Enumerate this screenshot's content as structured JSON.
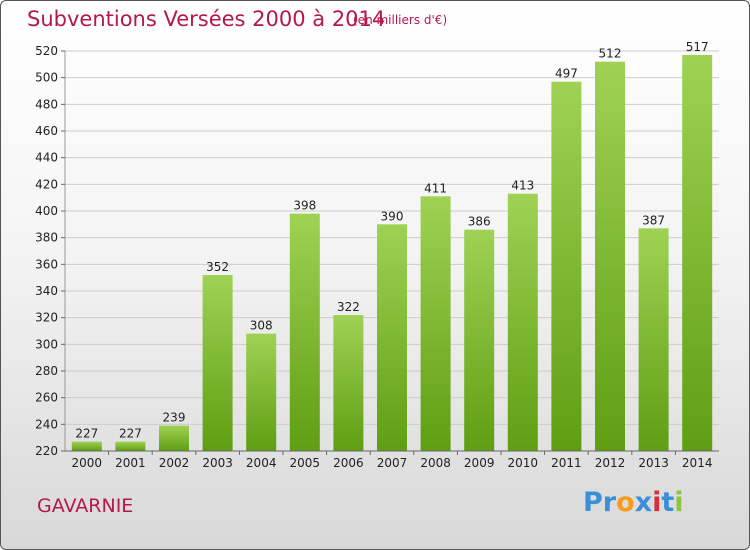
{
  "title": "Subventions Versées 2000 à 2014",
  "subtitle": "(en milliers d'€)",
  "commune": "GAVARNIE",
  "logo": {
    "text": "Proxiti",
    "letters": [
      {
        "ch": "P",
        "color": "#3a8fd8"
      },
      {
        "ch": "r",
        "color": "#3a8fd8"
      },
      {
        "ch": "o",
        "color": "#f39c1e"
      },
      {
        "ch": "x",
        "color": "#3a8fd8"
      },
      {
        "ch": "i",
        "color": "#d6303e"
      },
      {
        "ch": "t",
        "color": "#3a8fd8"
      },
      {
        "ch": "i",
        "color": "#8cc63f"
      }
    ]
  },
  "colors": {
    "title": "#b5174e",
    "bar_top": "#9fd254",
    "bar_bottom": "#5f9e12",
    "grid": "#cccccc"
  },
  "chart_data": {
    "type": "bar",
    "categories": [
      "2000",
      "2001",
      "2002",
      "2003",
      "2004",
      "2005",
      "2006",
      "2007",
      "2008",
      "2009",
      "2010",
      "2011",
      "2012",
      "2013",
      "2014"
    ],
    "values": [
      227,
      227,
      239,
      352,
      308,
      398,
      322,
      390,
      411,
      386,
      413,
      497,
      512,
      387,
      517
    ],
    "title": "Subventions Versées 2000 à 2014",
    "ylim": [
      220,
      520
    ],
    "yticks": [
      220,
      240,
      260,
      280,
      300,
      320,
      340,
      360,
      380,
      400,
      420,
      440,
      460,
      480,
      500,
      520
    ],
    "grid": true,
    "data_labels": true
  }
}
